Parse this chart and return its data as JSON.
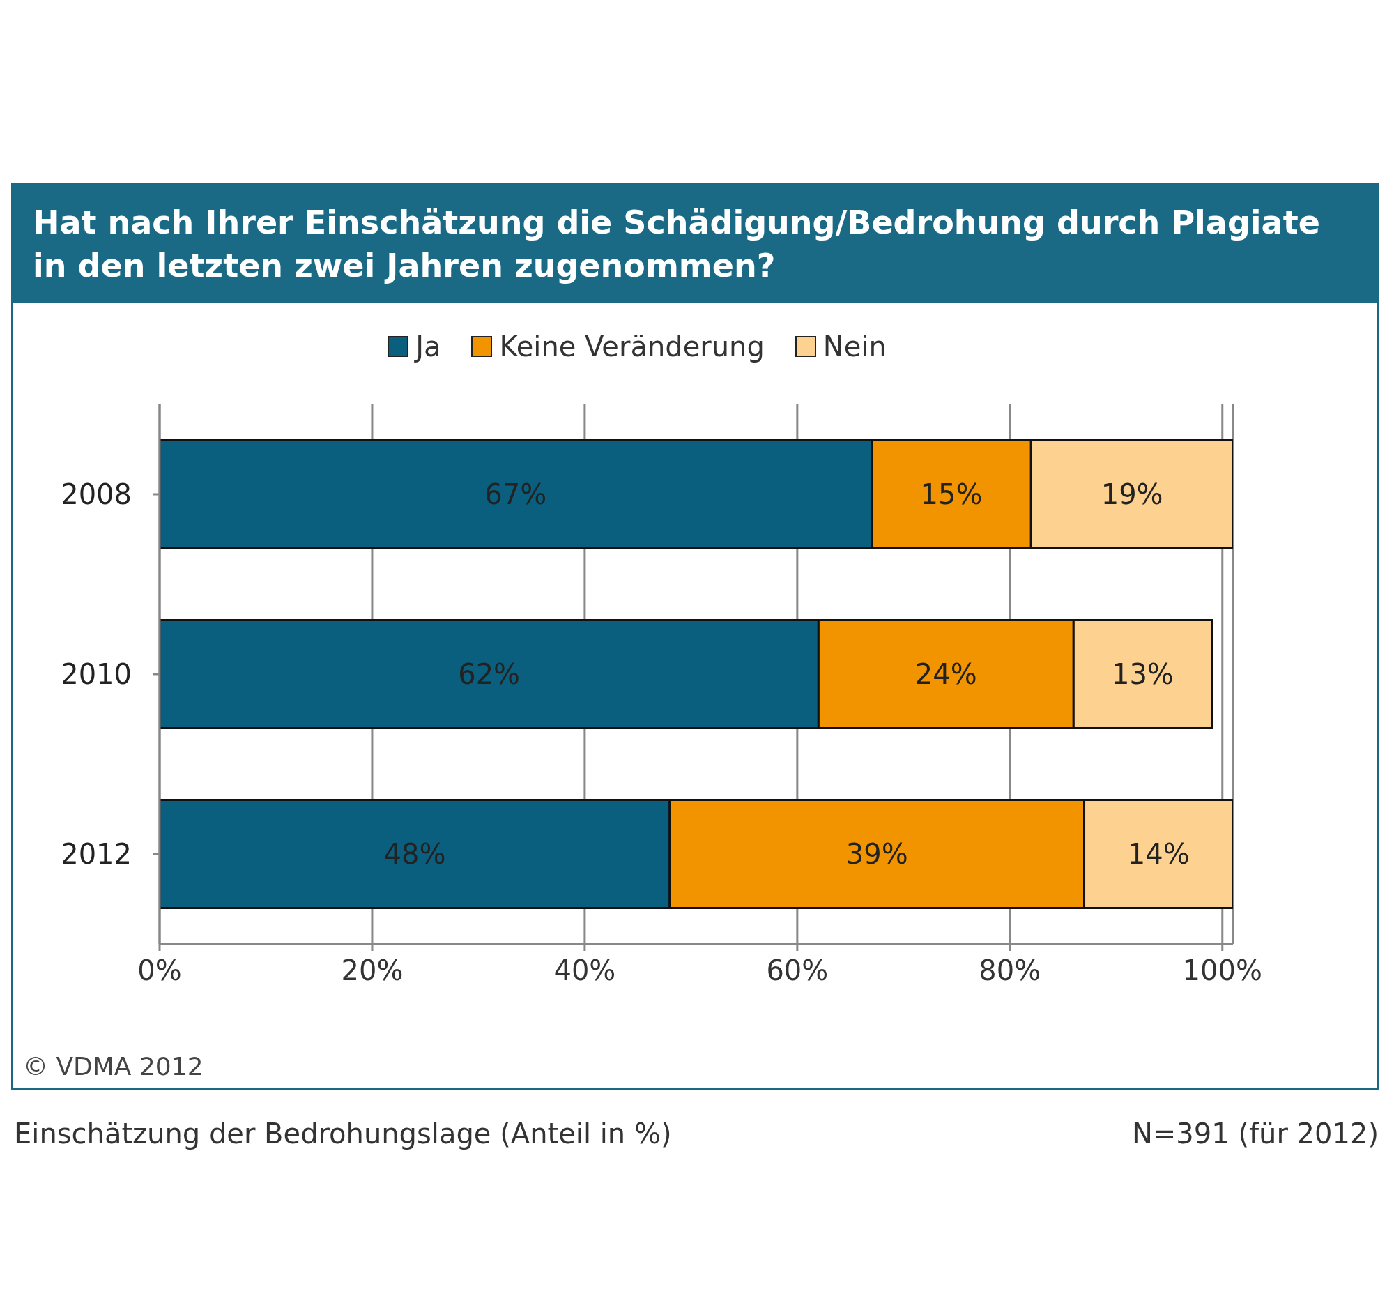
{
  "chart_data": {
    "type": "bar",
    "orientation": "horizontal",
    "stacked": true,
    "title": "Hat nach Ihrer Einschätzung die Schädigung/Bedrohung durch Plagiate in den letzten zwei Jahren zugenommen?",
    "categories": [
      "2008",
      "2010",
      "2012"
    ],
    "series": [
      {
        "name": "Ja",
        "color": "#0b5f7e",
        "values": [
          67,
          62,
          48
        ],
        "value_labels": [
          "67%",
          "62%",
          "48%"
        ]
      },
      {
        "name": "Keine Veränderung",
        "color": "#f29400",
        "values": [
          15,
          24,
          39
        ],
        "value_labels": [
          "15%",
          "24%",
          "39%"
        ]
      },
      {
        "name": "Nein",
        "color": "#fdd18f",
        "values": [
          19,
          13,
          14
        ],
        "value_labels": [
          "19%",
          "13%",
          "14%"
        ]
      }
    ],
    "xlim": [
      0,
      101
    ],
    "xticks": [
      {
        "value": 0,
        "label": "0%"
      },
      {
        "value": 20,
        "label": "20%"
      },
      {
        "value": 40,
        "label": "40%"
      },
      {
        "value": 60,
        "label": "60%"
      },
      {
        "value": 80,
        "label": "80%"
      },
      {
        "value": 100,
        "label": "100%"
      }
    ],
    "grid": "x",
    "legend": "top",
    "annotations": [
      "© VDMA 2012",
      "Einschätzung der Bedrohungslage (Anteil in %)",
      "N=391 (für 2012)"
    ]
  }
}
